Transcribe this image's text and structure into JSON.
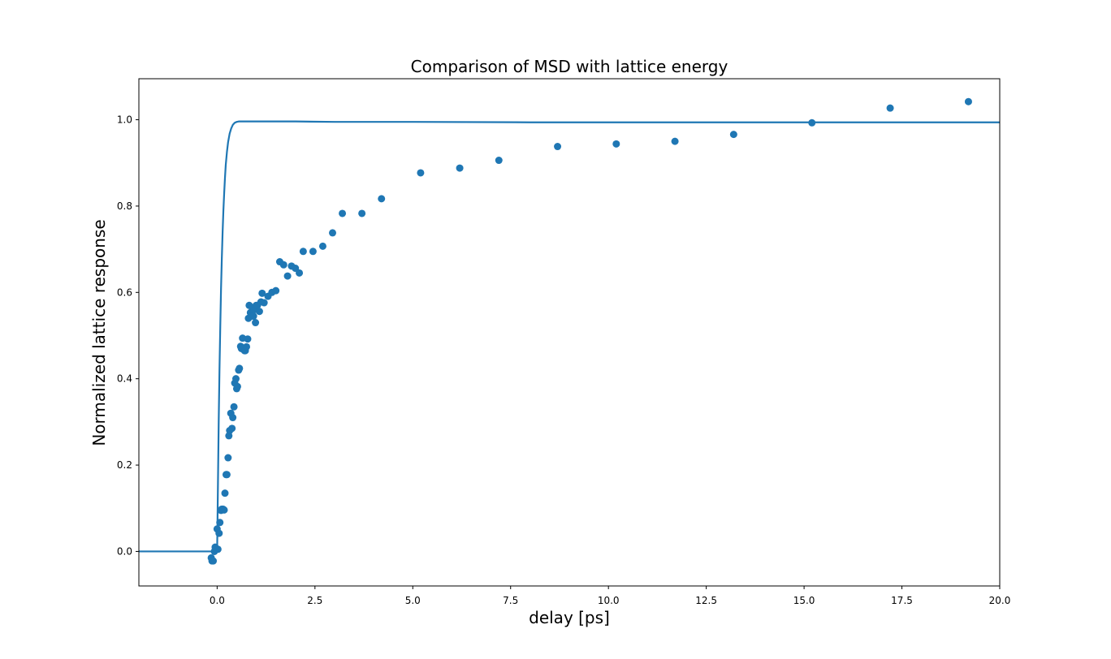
{
  "chart_data": {
    "type": "scatter",
    "title": "Comparison of MSD with lattice energy",
    "xlabel": "delay [ps]",
    "ylabel": "Normalized lattice response",
    "xlim": [
      -2.0,
      20.0
    ],
    "ylim": [
      -0.08,
      1.095
    ],
    "grid": false,
    "color": "#1f77b4",
    "x_ticks": [
      0.0,
      2.5,
      5.0,
      7.5,
      10.0,
      12.5,
      15.0,
      17.5,
      20.0
    ],
    "x_tick_labels": [
      "0.0",
      "2.5",
      "5.0",
      "7.5",
      "10.0",
      "12.5",
      "15.0",
      "17.5",
      "20.0"
    ],
    "y_ticks": [
      0.0,
      0.2,
      0.4,
      0.6,
      0.8,
      1.0
    ],
    "y_tick_labels": [
      "0.0",
      "0.2",
      "0.4",
      "0.6",
      "0.8",
      "1.0"
    ],
    "scatter": {
      "x": [
        -0.15,
        -0.13,
        -0.1,
        -0.07,
        -0.05,
        -0.03,
        0.0,
        0.02,
        0.05,
        0.07,
        0.1,
        0.12,
        0.15,
        0.18,
        0.2,
        0.23,
        0.25,
        0.28,
        0.3,
        0.32,
        0.35,
        0.38,
        0.4,
        0.43,
        0.45,
        0.48,
        0.5,
        0.52,
        0.55,
        0.57,
        0.6,
        0.62,
        0.65,
        0.68,
        0.7,
        0.72,
        0.75,
        0.78,
        0.8,
        0.82,
        0.85,
        0.88,
        0.9,
        0.93,
        0.95,
        0.98,
        1.0,
        1.03,
        1.08,
        1.12,
        1.15,
        1.2,
        1.3,
        1.4,
        1.5,
        1.6,
        1.7,
        1.8,
        1.9,
        2.0,
        2.1,
        2.2,
        2.45,
        2.7,
        2.95,
        3.2,
        3.7,
        4.2,
        5.2,
        6.2,
        7.2,
        8.7,
        10.2,
        11.7,
        13.2,
        15.2,
        17.2,
        19.2
      ],
      "y": [
        -0.015,
        -0.022,
        -0.022,
        0.0,
        0.01,
        0.005,
        0.052,
        0.005,
        0.042,
        0.067,
        0.095,
        0.098,
        0.098,
        0.096,
        0.135,
        0.178,
        0.178,
        0.217,
        0.268,
        0.28,
        0.32,
        0.285,
        0.31,
        0.335,
        0.39,
        0.4,
        0.377,
        0.382,
        0.42,
        0.424,
        0.475,
        0.47,
        0.494,
        0.47,
        0.465,
        0.465,
        0.474,
        0.492,
        0.54,
        0.57,
        0.553,
        0.545,
        0.565,
        0.545,
        0.56,
        0.53,
        0.57,
        0.57,
        0.556,
        0.578,
        0.598,
        0.576,
        0.591,
        0.6,
        0.604,
        0.671,
        0.664,
        0.638,
        0.661,
        0.656,
        0.645,
        0.695,
        0.695,
        0.707,
        0.738,
        0.783,
        0.783,
        0.817,
        0.877,
        0.888,
        0.906,
        0.938,
        0.944,
        0.95,
        0.966,
        0.993,
        1.027,
        1.042
      ]
    },
    "fit_curve": {
      "x": [
        -2.0,
        -1.0,
        -0.2,
        0.0,
        0.02,
        0.04,
        0.06,
        0.08,
        0.1,
        0.12,
        0.14,
        0.16,
        0.18,
        0.2,
        0.22,
        0.25,
        0.28,
        0.32,
        0.36,
        0.4,
        0.45,
        0.5,
        0.55,
        0.6,
        0.7,
        0.8,
        1.0,
        1.5,
        2.0,
        3.0,
        5.0,
        8.0,
        12.0,
        16.0,
        20.0
      ],
      "y": [
        0.0,
        0.0,
        0.0,
        0.0,
        0.15,
        0.3,
        0.42,
        0.52,
        0.61,
        0.68,
        0.74,
        0.79,
        0.83,
        0.865,
        0.895,
        0.925,
        0.948,
        0.968,
        0.98,
        0.988,
        0.993,
        0.995,
        0.996,
        0.996,
        0.996,
        0.996,
        0.996,
        0.996,
        0.996,
        0.995,
        0.995,
        0.994,
        0.994,
        0.994,
        0.994
      ]
    }
  }
}
